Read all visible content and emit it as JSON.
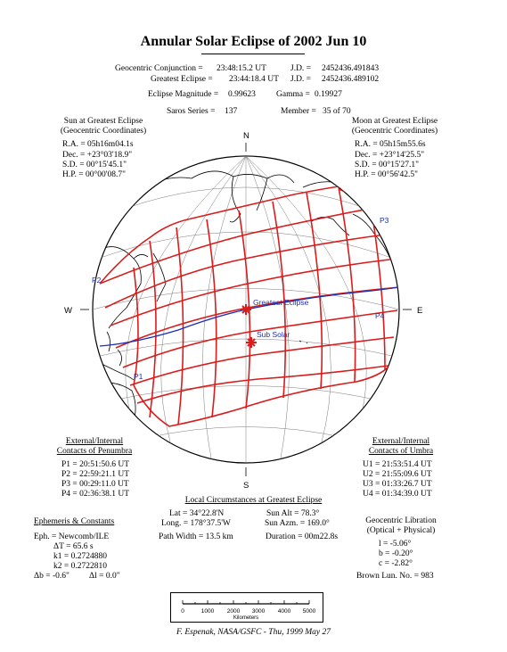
{
  "title": "Annular Solar Eclipse of 2002 Jun 10",
  "header": {
    "conj_label": "Geocentric Conjunction =",
    "conj_value": "23:48:15.2 UT",
    "conj_jd_label": "J.D. =",
    "conj_jd": "2452436.491843",
    "ge_label": "Greatest Eclipse =",
    "ge_value": "23:44:18.4 UT",
    "ge_jd_label": "J.D. =",
    "ge_jd": "2452436.489102",
    "mag_label": "Eclipse Magnitude =",
    "mag_value": "0.99623",
    "gamma_label": "Gamma =",
    "gamma_value": "0.19927",
    "saros_label": "Saros Series =",
    "saros_value": "137",
    "member_label": "Member =",
    "member_value": "35 of 70"
  },
  "sun": {
    "heading1": "Sun at Greatest Eclipse",
    "heading2": "(Geocentric Coordinates)",
    "ra": "R.A. = 05h16m04.1s",
    "dec": "Dec. = +23°03'18.9\"",
    "sd": "S.D. = 00°15'45.1\"",
    "hp": "H.P. = 00°00'08.7\""
  },
  "moon": {
    "heading1": "Moon at Greatest Eclipse",
    "heading2": "(Geocentric Coordinates)",
    "ra": "R.A. = 05h15m55.6s",
    "dec": "Dec. = +23°14'25.5\"",
    "sd": "S.D. = 00°15'27.1\"",
    "hp": "H.P. = 00°56'42.5\""
  },
  "map": {
    "compass_n": "N",
    "compass_s": "S",
    "compass_w": "W",
    "compass_e": "E",
    "label_p1": "P1",
    "label_p2": "P2",
    "label_p3": "P3",
    "label_p4": "P4",
    "label_greatest": "Greatest Eclipse",
    "label_subsolar": "Sub Solar",
    "colors": {
      "penumbra_grid": "#d91c1c",
      "central_path": "#1a2fb8",
      "coastline": "#000000"
    }
  },
  "penumbra": {
    "heading1": "External/Internal",
    "heading2": "Contacts of Penumbra",
    "p1": "P1 = 20:51:50.6 UT",
    "p2": "P2 = 22:59:21.1 UT",
    "p3": "P3 = 00:29:11.0 UT",
    "p4": "P4 = 02:36:38.1 UT"
  },
  "umbra": {
    "heading1": "External/Internal",
    "heading2": "Contacts of Umbra",
    "u1": "U1 = 21:53:51.4 UT",
    "u2": "U2 = 21:55:09.6 UT",
    "u3": "U3 = 01:33:26.7 UT",
    "u4": "U4 = 01:34:39.0 UT"
  },
  "local": {
    "heading": "Local Circumstances at Greatest Eclipse",
    "lat": "Lat = 34°22.8'N",
    "sun_alt": "Sun Alt = 78.3°",
    "long": "Long. = 178°37.5'W",
    "sun_azm": "Sun Azm. = 169.0°",
    "path_width": "Path Width = 13.5 km",
    "duration": "Duration = 00m22.8s"
  },
  "ephemeris": {
    "heading": "Ephemeris & Constants",
    "eph": "Eph. = Newcomb/ILE",
    "dt": "ΔT = 65.6 s",
    "k1": "k1 = 0.2724880",
    "k2": "k2 = 0.2722810",
    "db": "Δb = -0.6\"",
    "dl": "Δl = 0.0\""
  },
  "libration": {
    "heading1": "Geocentric Libration",
    "heading2": "(Optical + Physical)",
    "l": "l = -5.06°",
    "b": "b = -0.20°",
    "c": "c = -2.82°",
    "brown": "Brown Lun. No. = 983"
  },
  "scale": {
    "ticks": [
      "0",
      "1000",
      "2000",
      "3000",
      "4000",
      "5000"
    ],
    "unit": "Kilometers"
  },
  "credit": "F. Espenak, NASA/GSFC - Thu, 1999 May 27"
}
